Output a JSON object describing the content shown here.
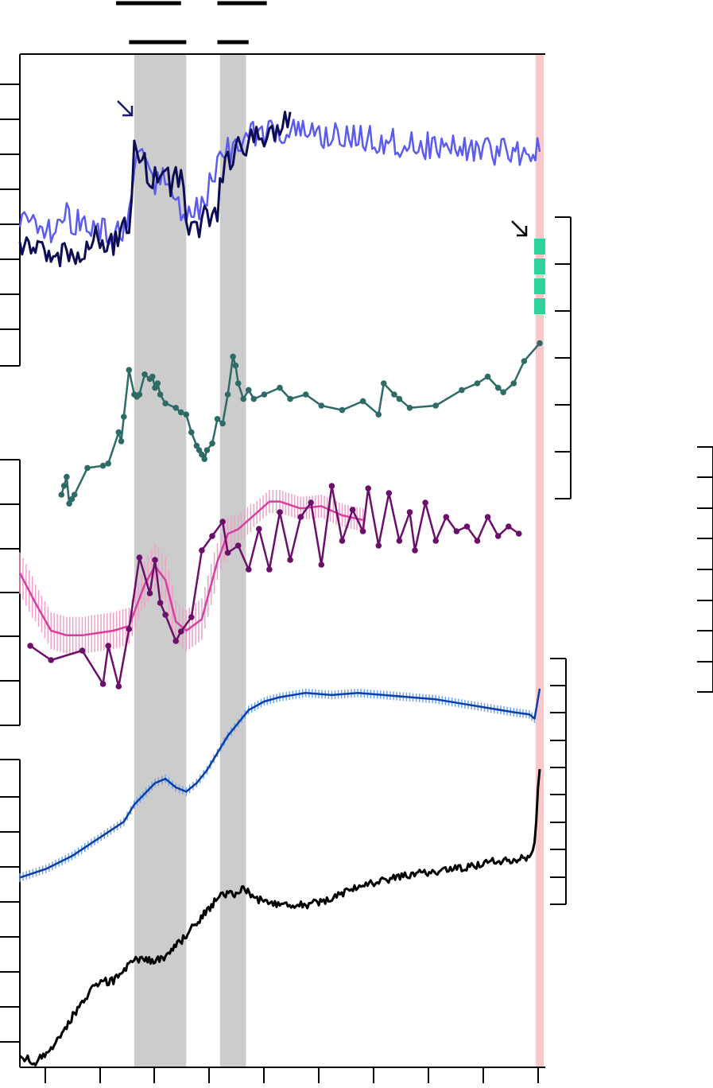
{
  "chart_data": {
    "type": "line",
    "title": "",
    "x_range": [
      0,
      1
    ],
    "grid": false,
    "legend": "none",
    "shaded_intervals": [
      {
        "x0": 0.22,
        "x1": 0.32,
        "color": "#cccccc"
      },
      {
        "x0": 0.385,
        "x1": 0.435,
        "color": "#cccccc"
      },
      {
        "x0": 0.992,
        "x1": 1.008,
        "color": "#f9c9c9"
      }
    ],
    "bar_markers": [
      {
        "row": 1,
        "x0": 0.185,
        "x1": 0.31
      },
      {
        "row": 1,
        "x0": 0.38,
        "x1": 0.475
      },
      {
        "row": 2,
        "x0": 0.21,
        "x1": 0.32
      },
      {
        "row": 2,
        "x0": 0.38,
        "x1": 0.44
      }
    ],
    "annotations": [
      {
        "type": "arrow",
        "x": 0.205,
        "panel": "top",
        "value": 1.04,
        "color": "#1a1a66"
      },
      {
        "type": "arrow",
        "x": 0.965,
        "panel": "middle-right",
        "value": 1.02,
        "color": "#000000"
      }
    ],
    "series": [
      {
        "key": "light_blue_noisy",
        "color": "#5b5bf0",
        "style": "line",
        "x": [
          0.0,
          0.03,
          0.06,
          0.09,
          0.12,
          0.15,
          0.18,
          0.21,
          0.22,
          0.24,
          0.26,
          0.28,
          0.3,
          0.32,
          0.34,
          0.36,
          0.38,
          0.4,
          0.42,
          0.44,
          0.47,
          0.5,
          0.54,
          0.58,
          0.62,
          0.66,
          0.7,
          0.74,
          0.78,
          0.82,
          0.86,
          0.9,
          0.94,
          0.97,
          1.0
        ],
        "y": [
          0.35,
          0.38,
          0.34,
          0.4,
          0.36,
          0.33,
          0.31,
          0.37,
          0.62,
          0.66,
          0.56,
          0.58,
          0.45,
          0.4,
          0.42,
          0.5,
          0.66,
          0.7,
          0.74,
          0.77,
          0.79,
          0.8,
          0.79,
          0.78,
          0.77,
          0.76,
          0.75,
          0.74,
          0.73,
          0.72,
          0.72,
          0.7,
          0.71,
          0.7,
          0.7
        ]
      },
      {
        "key": "navy_noisy",
        "color": "#0d0d55",
        "style": "line",
        "x": [
          0.0,
          0.03,
          0.06,
          0.09,
          0.12,
          0.15,
          0.18,
          0.21,
          0.215,
          0.22,
          0.23,
          0.25,
          0.27,
          0.29,
          0.31,
          0.32,
          0.33,
          0.35,
          0.37,
          0.38,
          0.39,
          0.4,
          0.42,
          0.44,
          0.46,
          0.48,
          0.5,
          0.52
        ],
        "y": [
          0.28,
          0.24,
          0.2,
          0.25,
          0.22,
          0.3,
          0.27,
          0.36,
          0.45,
          0.75,
          0.68,
          0.58,
          0.63,
          0.55,
          0.6,
          0.42,
          0.32,
          0.38,
          0.41,
          0.44,
          0.6,
          0.66,
          0.72,
          0.74,
          0.77,
          0.8,
          0.82,
          0.84
        ]
      },
      {
        "key": "teal_points",
        "color": "#2e6b66",
        "style": "line-markers",
        "x": [
          0.08,
          0.085,
          0.09,
          0.095,
          0.1,
          0.105,
          0.13,
          0.16,
          0.17,
          0.19,
          0.195,
          0.2,
          0.21,
          0.22,
          0.225,
          0.23,
          0.24,
          0.25,
          0.255,
          0.26,
          0.265,
          0.27,
          0.28,
          0.3,
          0.31,
          0.32,
          0.33,
          0.34,
          0.345,
          0.35,
          0.355,
          0.36,
          0.37,
          0.38,
          0.39,
          0.4,
          0.41,
          0.415,
          0.42,
          0.43,
          0.44,
          0.45,
          0.47,
          0.5,
          0.52,
          0.55,
          0.58,
          0.62,
          0.66,
          0.69,
          0.7,
          0.72,
          0.73,
          0.75,
          0.8,
          0.85,
          0.88,
          0.9,
          0.92,
          0.93,
          0.95,
          0.97,
          1.0
        ],
        "y": [
          0.1,
          0.14,
          0.18,
          0.06,
          0.08,
          0.1,
          0.22,
          0.23,
          0.24,
          0.38,
          0.34,
          0.45,
          0.66,
          0.55,
          0.54,
          0.55,
          0.64,
          0.62,
          0.63,
          0.58,
          0.6,
          0.55,
          0.51,
          0.49,
          0.47,
          0.46,
          0.38,
          0.32,
          0.3,
          0.28,
          0.26,
          0.3,
          0.33,
          0.44,
          0.42,
          0.55,
          0.72,
          0.68,
          0.6,
          0.53,
          0.57,
          0.53,
          0.55,
          0.58,
          0.53,
          0.55,
          0.5,
          0.48,
          0.52,
          0.46,
          0.6,
          0.55,
          0.53,
          0.49,
          0.5,
          0.57,
          0.6,
          0.63,
          0.58,
          0.56,
          0.6,
          0.7,
          0.78
        ]
      },
      {
        "key": "pink_band",
        "color": "#d63fa1",
        "error_color": "#f2a0c8",
        "style": "line-errorbars",
        "x": [
          0.0,
          0.03,
          0.06,
          0.09,
          0.12,
          0.15,
          0.18,
          0.21,
          0.24,
          0.26,
          0.28,
          0.3,
          0.32,
          0.35,
          0.38,
          0.4,
          0.42,
          0.45,
          0.48,
          0.5,
          0.54,
          0.58,
          0.62,
          0.66
        ],
        "y": [
          0.55,
          0.42,
          0.3,
          0.28,
          0.28,
          0.29,
          0.3,
          0.32,
          0.5,
          0.58,
          0.52,
          0.34,
          0.3,
          0.35,
          0.6,
          0.72,
          0.74,
          0.8,
          0.86,
          0.86,
          0.83,
          0.84,
          0.8,
          0.78
        ],
        "error": [
          0.09,
          0.08,
          0.08,
          0.08,
          0.08,
          0.08,
          0.08,
          0.08,
          0.1,
          0.1,
          0.1,
          0.09,
          0.09,
          0.09,
          0.08,
          0.07,
          0.06,
          0.05,
          0.05,
          0.05,
          0.05,
          0.05,
          0.05,
          0.05
        ]
      },
      {
        "key": "purple_points",
        "color": "#6b0f6b",
        "style": "line-markers",
        "x": [
          0.02,
          0.06,
          0.12,
          0.16,
          0.17,
          0.19,
          0.21,
          0.23,
          0.25,
          0.26,
          0.27,
          0.28,
          0.3,
          0.31,
          0.33,
          0.35,
          0.37,
          0.39,
          0.4,
          0.42,
          0.44,
          0.46,
          0.48,
          0.5,
          0.52,
          0.54,
          0.56,
          0.58,
          0.6,
          0.62,
          0.64,
          0.66,
          0.67,
          0.69,
          0.71,
          0.73,
          0.75,
          0.76,
          0.78,
          0.8,
          0.82,
          0.84,
          0.86,
          0.88,
          0.9,
          0.92,
          0.94,
          0.96
        ],
        "y": [
          0.26,
          0.2,
          0.24,
          0.1,
          0.26,
          0.09,
          0.33,
          0.63,
          0.48,
          0.62,
          0.44,
          0.39,
          0.28,
          0.32,
          0.38,
          0.66,
          0.72,
          0.78,
          0.65,
          0.68,
          0.58,
          0.75,
          0.58,
          0.82,
          0.62,
          0.8,
          0.86,
          0.6,
          0.93,
          0.7,
          0.83,
          0.74,
          0.92,
          0.68,
          0.9,
          0.7,
          0.82,
          0.66,
          0.86,
          0.7,
          0.8,
          0.74,
          0.76,
          0.7,
          0.8,
          0.72,
          0.76,
          0.73
        ]
      },
      {
        "key": "blue_band",
        "color": "#0a3ea8",
        "error_color": "#6ea6ef",
        "style": "line-errorbars",
        "x": [
          0.0,
          0.05,
          0.1,
          0.15,
          0.2,
          0.22,
          0.26,
          0.28,
          0.3,
          0.32,
          0.34,
          0.36,
          0.38,
          0.4,
          0.42,
          0.44,
          0.47,
          0.5,
          0.55,
          0.6,
          0.65,
          0.7,
          0.75,
          0.8,
          0.85,
          0.9,
          0.95,
          0.98,
          0.99,
          1.0
        ],
        "y": [
          0.08,
          0.12,
          0.18,
          0.26,
          0.34,
          0.42,
          0.52,
          0.54,
          0.5,
          0.48,
          0.52,
          0.58,
          0.66,
          0.74,
          0.8,
          0.86,
          0.9,
          0.92,
          0.94,
          0.93,
          0.94,
          0.93,
          0.92,
          0.91,
          0.89,
          0.87,
          0.85,
          0.84,
          0.82,
          0.96
        ],
        "error": [
          0.02,
          0.02,
          0.02,
          0.02,
          0.02,
          0.02,
          0.02,
          0.02,
          0.02,
          0.02,
          0.02,
          0.02,
          0.02,
          0.02,
          0.02,
          0.02,
          0.02,
          0.02,
          0.02,
          0.02,
          0.02,
          0.02,
          0.02,
          0.02,
          0.02,
          0.02,
          0.02,
          0.02,
          0.02,
          0.0
        ]
      },
      {
        "key": "black_rising",
        "color": "#000000",
        "style": "line",
        "x": [
          0.0,
          0.03,
          0.06,
          0.09,
          0.12,
          0.15,
          0.18,
          0.21,
          0.22,
          0.24,
          0.26,
          0.28,
          0.3,
          0.32,
          0.34,
          0.36,
          0.38,
          0.39,
          0.41,
          0.43,
          0.45,
          0.5,
          0.55,
          0.6,
          0.65,
          0.7,
          0.75,
          0.8,
          0.85,
          0.9,
          0.95,
          0.98,
          0.99,
          1.0
        ],
        "y": [
          0.02,
          0.0,
          0.04,
          0.12,
          0.2,
          0.26,
          0.27,
          0.32,
          0.34,
          0.34,
          0.33,
          0.35,
          0.38,
          0.42,
          0.46,
          0.5,
          0.54,
          0.56,
          0.55,
          0.58,
          0.54,
          0.52,
          0.52,
          0.54,
          0.58,
          0.6,
          0.62,
          0.63,
          0.64,
          0.66,
          0.67,
          0.68,
          0.72,
          0.98
        ]
      }
    ]
  }
}
